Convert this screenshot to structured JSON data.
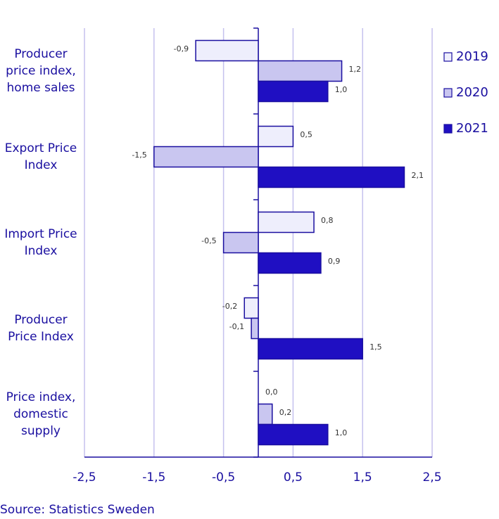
{
  "chart_data": {
    "type": "hbar",
    "categories": [
      "Producer price index, home sales",
      "Export Price Index",
      "Import Price Index",
      "Producer Price Index",
      "Price index, domestic supply"
    ],
    "series": [
      {
        "name": "2019",
        "color": "#eeeefc",
        "values": [
          -0.9,
          0.5,
          0.8,
          -0.2,
          0.0
        ],
        "value_labels": [
          "-0,9",
          "0,5",
          "0,8",
          "-0,2",
          "0,0"
        ]
      },
      {
        "name": "2020",
        "color": "#c9c6f0",
        "values": [
          1.2,
          -1.5,
          -0.5,
          -0.1,
          0.2
        ],
        "value_labels": [
          "1,2",
          "-1,5",
          "-0,5",
          "-0,1",
          "0,2"
        ]
      },
      {
        "name": "2021",
        "color": "#1f0fc2",
        "values": [
          1.0,
          2.1,
          0.9,
          1.5,
          1.0
        ],
        "value_labels": [
          "1,0",
          "2,1",
          "0,9",
          "1,5",
          "1,0"
        ]
      }
    ],
    "xlim": [
      -2.5,
      2.5
    ],
    "xticks": [
      {
        "value": -2.5,
        "label": "-2,5"
      },
      {
        "value": -1.5,
        "label": "-1,5"
      },
      {
        "value": -0.5,
        "label": "-0,5"
      },
      {
        "value": 0.5,
        "label": "0,5"
      },
      {
        "value": 1.5,
        "label": "1,5"
      },
      {
        "value": 2.5,
        "label": "2,5"
      }
    ],
    "grid": true,
    "legend": "right",
    "source": "Source: Statistics Sweden"
  }
}
